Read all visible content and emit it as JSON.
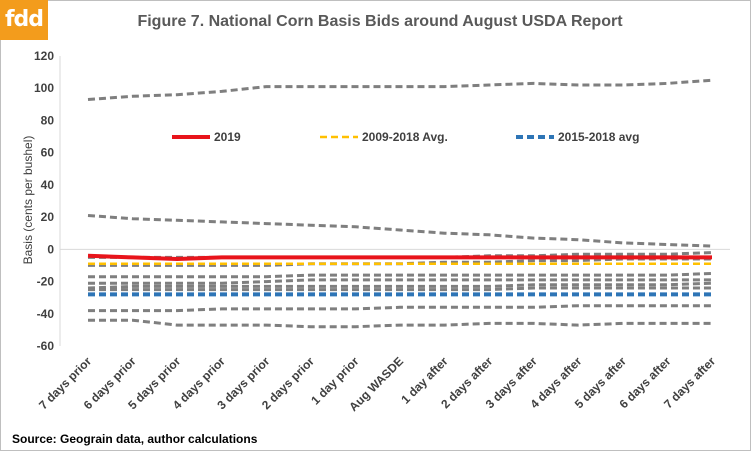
{
  "logo": {
    "text": "fdd"
  },
  "source": "Source:  Geograin data, author calculations",
  "chart_data": {
    "type": "line",
    "title": "Figure 7. National Corn Basis Bids around August USDA Report",
    "ylabel": "Basis (cents per bushel)",
    "xlabel": "",
    "ylim": [
      -60,
      120
    ],
    "yticks": [
      -60,
      -40,
      -20,
      0,
      20,
      40,
      60,
      80,
      100,
      120
    ],
    "grid": false,
    "legend_position": "top",
    "categories": [
      "7 days prior",
      "6 days prior",
      "5 days prior",
      "4 days prior",
      "3 days prior",
      "2 days prior",
      "1 day prior",
      "Aug WASDE",
      "1 day after",
      "2 days after",
      "3 days after",
      "4 days after",
      "5 days after",
      "6 days after",
      "7 days after"
    ],
    "series": [
      {
        "name": "2019",
        "color": "#e8141b",
        "style": "solid",
        "width": 4,
        "values": [
          -4,
          -5,
          -6,
          -5,
          -5,
          -5,
          -5,
          -5,
          -5,
          -5,
          -5,
          -5,
          -5,
          -5,
          -5
        ]
      },
      {
        "name": "2009-2018 Avg.",
        "color": "#ffc000",
        "style": "dashed",
        "width": 2.5,
        "values": [
          -9,
          -9,
          -9,
          -9,
          -9,
          -9,
          -9,
          -9,
          -9,
          -9,
          -9,
          -9,
          -9,
          -9,
          -9
        ]
      },
      {
        "name": "2015-2018 avg",
        "color": "#2e75b6",
        "style": "dashed",
        "width": 4,
        "values": [
          -28,
          -28,
          -28,
          -28,
          -28,
          -28,
          -28,
          -28,
          -28,
          -28,
          -28,
          -28,
          -28,
          -28,
          -28
        ]
      },
      {
        "color": "#7f7f7f",
        "style": "dashed",
        "width": 3,
        "values": [
          93,
          95,
          96,
          98,
          101,
          101,
          101,
          101,
          101,
          102,
          103,
          102,
          102,
          103,
          105
        ]
      },
      {
        "color": "#7f7f7f",
        "style": "dashed",
        "width": 3,
        "values": [
          21,
          19,
          18,
          17,
          16,
          15,
          14,
          12,
          10,
          9,
          7,
          6,
          4,
          3,
          2
        ]
      },
      {
        "color": "#7f7f7f",
        "style": "dashed",
        "width": 3,
        "values": [
          -5,
          -5,
          -5,
          -5,
          -5,
          -5,
          -5,
          -5,
          -5,
          -4,
          -4,
          -3,
          -3,
          -3,
          -2
        ]
      },
      {
        "color": "#7f7f7f",
        "style": "dashed",
        "width": 3,
        "values": [
          -10,
          -10,
          -10,
          -10,
          -10,
          -9,
          -9,
          -9,
          -8,
          -8,
          -7,
          -7,
          -6,
          -6,
          -6
        ]
      },
      {
        "color": "#7f7f7f",
        "style": "dashed",
        "width": 3,
        "values": [
          -17,
          -17,
          -17,
          -17,
          -17,
          -16,
          -16,
          -16,
          -16,
          -16,
          -16,
          -16,
          -16,
          -16,
          -15
        ]
      },
      {
        "color": "#7f7f7f",
        "style": "dashed",
        "width": 3,
        "values": [
          -21,
          -21,
          -21,
          -21,
          -20,
          -19,
          -19,
          -19,
          -19,
          -19,
          -19,
          -19,
          -19,
          -19,
          -19
        ]
      },
      {
        "color": "#7f7f7f",
        "style": "dashed",
        "width": 3,
        "values": [
          -24,
          -23,
          -23,
          -23,
          -23,
          -23,
          -23,
          -23,
          -23,
          -23,
          -22,
          -22,
          -22,
          -22,
          -21
        ]
      },
      {
        "color": "#7f7f7f",
        "style": "dashed",
        "width": 3,
        "values": [
          -25,
          -25,
          -25,
          -25,
          -25,
          -25,
          -25,
          -25,
          -25,
          -25,
          -24,
          -24,
          -24,
          -24,
          -24
        ]
      },
      {
        "color": "#7f7f7f",
        "style": "dashed",
        "width": 3,
        "values": [
          -38,
          -38,
          -38,
          -37,
          -37,
          -37,
          -37,
          -36,
          -36,
          -36,
          -36,
          -35,
          -35,
          -35,
          -35
        ]
      },
      {
        "color": "#7f7f7f",
        "style": "dashed",
        "width": 3,
        "values": [
          -44,
          -44,
          -47,
          -47,
          -47,
          -48,
          -48,
          -47,
          -47,
          -46,
          -46,
          -47,
          -46,
          -46,
          -46
        ]
      }
    ]
  }
}
